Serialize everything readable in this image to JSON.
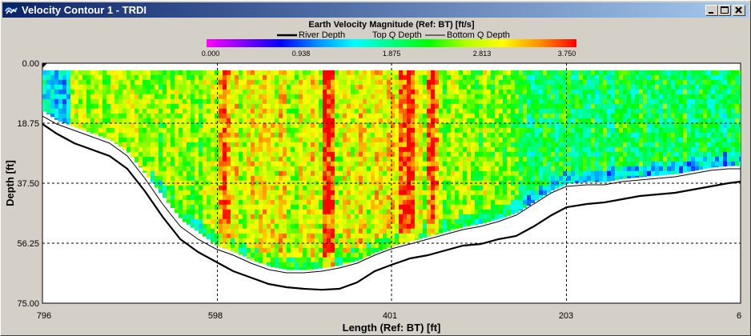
{
  "window": {
    "title": "Velocity Contour 1 - TRDI",
    "controls": {
      "minimize": "minimize",
      "maximize": "maximize",
      "close": "close"
    }
  },
  "colorbar": {
    "title": "Earth Velocity Magnitude (Ref: BT) [ft/s]",
    "ticks": [
      "0.000",
      "0.938",
      "1.875",
      "2.813",
      "3.750"
    ],
    "stops": [
      "#ff00ff",
      "#8000ff",
      "#0000ff",
      "#0090ff",
      "#00ffff",
      "#00ff80",
      "#00ff00",
      "#b0ff00",
      "#ffff00",
      "#ff9000",
      "#ff0000"
    ]
  },
  "legend": {
    "river_depth": "River Depth",
    "top_q_depth": "Top Q Depth",
    "bottom_q_depth": "Bottom Q Depth"
  },
  "chart_data": {
    "type": "heatmap",
    "title": "Earth Velocity Magnitude (Ref: BT) [ft/s]",
    "xlabel": "Length (Ref: BT) [ft]",
    "ylabel": "Depth [ft]",
    "x_ticks": [
      "796",
      "598",
      "401",
      "203",
      "6"
    ],
    "y_ticks": [
      "0.00",
      "18.75",
      "37.50",
      "56.25",
      "75.00"
    ],
    "xlim": [
      796,
      6
    ],
    "ylim": [
      0,
      75
    ],
    "grid": true,
    "color_range": [
      0,
      3.75
    ],
    "river_depth": {
      "x": [
        796,
        780,
        760,
        740,
        720,
        700,
        680,
        660,
        640,
        620,
        600,
        580,
        560,
        540,
        520,
        500,
        480,
        460,
        440,
        420,
        401,
        380,
        360,
        340,
        320,
        300,
        280,
        260,
        240,
        220,
        203,
        180,
        160,
        140,
        120,
        100,
        80,
        60,
        40,
        20,
        6
      ],
      "y": [
        19,
        22,
        25,
        27,
        29,
        33,
        40,
        48,
        55,
        59,
        62,
        65,
        67,
        69,
        70,
        70.5,
        70.8,
        70.5,
        68.5,
        65,
        63,
        61,
        60,
        58.5,
        57,
        56.5,
        55,
        54,
        51,
        47.5,
        45,
        44,
        43.5,
        42.5,
        41.5,
        41,
        40.5,
        39.5,
        38.5,
        37.5,
        37
      ]
    },
    "bottom_q_depth": {
      "x": [
        796,
        780,
        760,
        740,
        720,
        700,
        680,
        660,
        640,
        620,
        600,
        580,
        560,
        540,
        520,
        500,
        480,
        460,
        440,
        420,
        401,
        380,
        360,
        340,
        320,
        300,
        280,
        260,
        240,
        220,
        203,
        180,
        160,
        140,
        120,
        100,
        80,
        60,
        40,
        20,
        6
      ],
      "y": [
        16.5,
        19,
        21,
        23,
        25,
        29,
        36,
        44,
        51,
        55,
        58,
        60,
        62.5,
        64.5,
        65.5,
        65.5,
        65,
        64,
        62.5,
        60,
        58,
        56.5,
        55,
        53.5,
        52,
        51,
        49.5,
        47.5,
        44,
        40.5,
        38.5,
        38,
        38,
        37,
        36.5,
        36,
        35.5,
        34.5,
        33.5,
        33,
        33
      ]
    },
    "data_bottom": {
      "x": [
        796,
        780,
        760,
        740,
        720,
        700,
        680,
        660,
        640,
        620,
        600,
        580,
        560,
        540,
        520,
        500,
        480,
        460,
        440,
        420,
        401,
        380,
        360,
        340,
        320,
        300,
        280,
        260,
        240,
        220,
        203,
        180,
        160,
        140,
        120,
        100,
        80,
        60,
        40,
        20,
        6
      ],
      "y": [
        15,
        18,
        20,
        22,
        24,
        28,
        35,
        42,
        49,
        53,
        57,
        59,
        61.5,
        63.5,
        64.5,
        64.5,
        64,
        63,
        61.5,
        59,
        57,
        55.5,
        54,
        52.5,
        51,
        50,
        48.5,
        46.5,
        43,
        39.5,
        37.5,
        37,
        37,
        36,
        35.5,
        35,
        34.5,
        33.5,
        32.5,
        32,
        32
      ]
    }
  }
}
